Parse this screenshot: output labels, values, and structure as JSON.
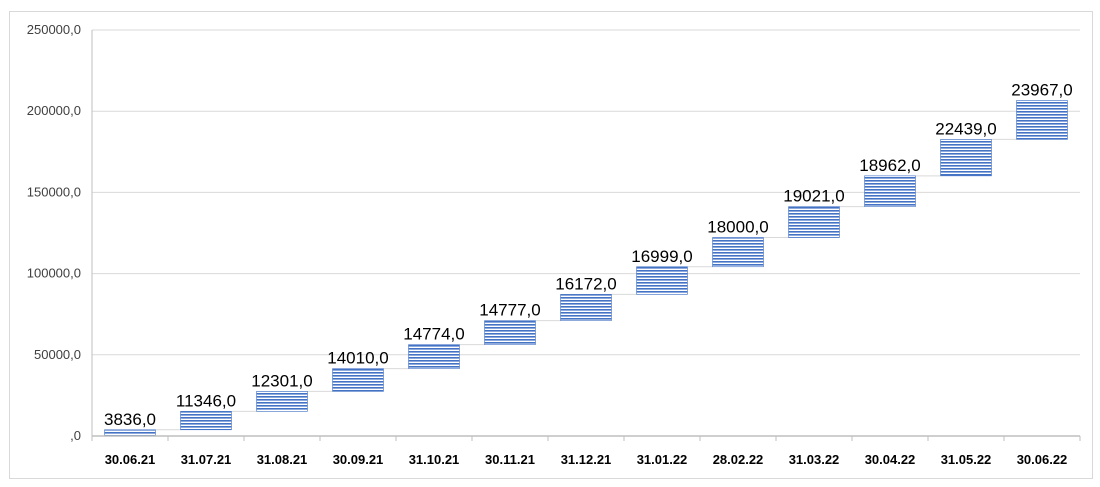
{
  "chart_data": {
    "type": "bar",
    "subtype": "waterfall",
    "title": "",
    "xlabel": "",
    "ylabel": "",
    "categories": [
      "30.06.21",
      "31.07.21",
      "31.08.21",
      "30.09.21",
      "31.10.21",
      "30.11.21",
      "31.12.21",
      "31.01.22",
      "28.02.22",
      "31.03.22",
      "30.04.22",
      "31.05.22",
      "30.06.22"
    ],
    "values": [
      3836.0,
      11346.0,
      12301.0,
      14010.0,
      14774.0,
      14777.0,
      16172.0,
      16999.0,
      18000.0,
      19021.0,
      18962.0,
      22439.0,
      23967.0
    ],
    "data_labels": [
      "3836,0",
      "11346,0",
      "12301,0",
      "14010,0",
      "14774,0",
      "14777,0",
      "16172,0",
      "16999,0",
      "18000,0",
      "19021,0",
      "18962,0",
      "22439,0",
      "23967,0"
    ],
    "ylim": [
      0,
      250000
    ],
    "yticks": [
      0,
      50000,
      100000,
      150000,
      200000,
      250000
    ],
    "ytick_labels": [
      ",0",
      "50000,0",
      "100000,0",
      "150000,0",
      "200000,0",
      "250000,0"
    ],
    "grid": true,
    "legend": "none",
    "colors": {
      "bar_fill": "#4472c4",
      "bar_stripe": "#ffffff",
      "grid": "#d9d9d9",
      "axis": "#bfbfbf",
      "connector": "#d9d9d9"
    }
  }
}
